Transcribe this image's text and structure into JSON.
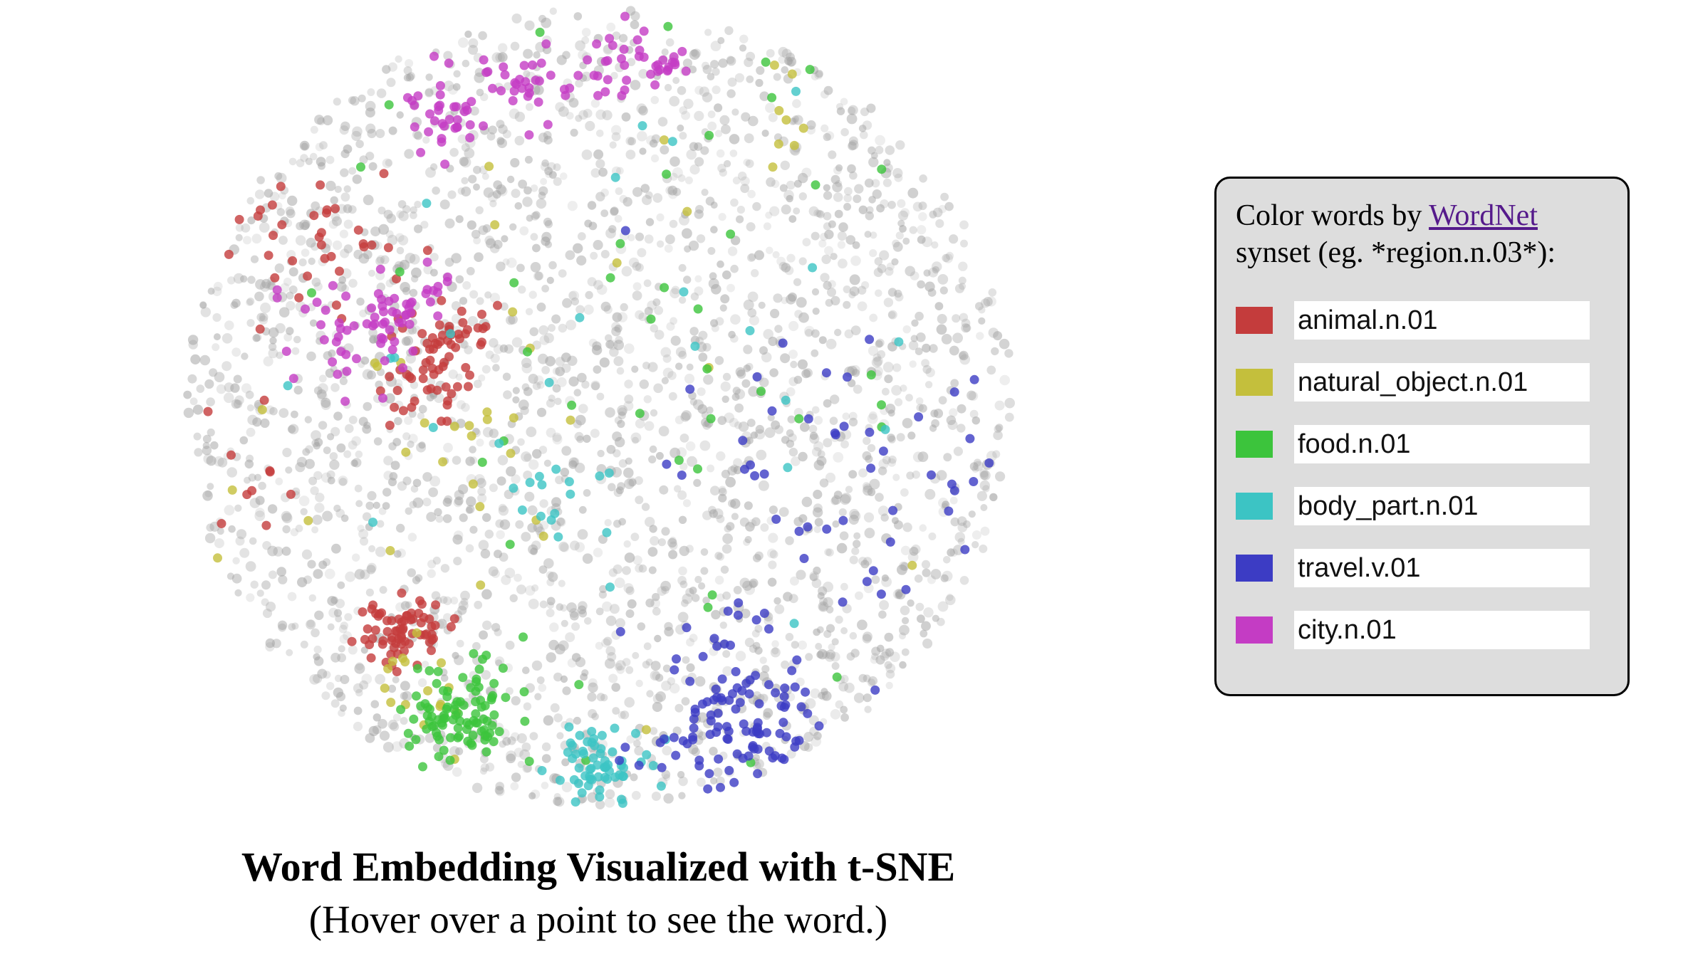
{
  "caption": {
    "title": "Word Embedding Visualized with t-SNE",
    "subtitle": "(Hover over a point to see the word.)"
  },
  "legend": {
    "intro_prefix": "Color words by ",
    "link_text": "WordNet",
    "intro_suffix": "synset (eg. *region.n.03*):",
    "items": [
      {
        "value": "animal.n.01",
        "color": "#c43c3c"
      },
      {
        "value": "natural_object.n.01",
        "color": "#c4bf3c"
      },
      {
        "value": "food.n.01",
        "color": "#3cc43c"
      },
      {
        "value": "body_part.n.01",
        "color": "#3cc4c4"
      },
      {
        "value": "travel.v.01",
        "color": "#3c3cc4"
      },
      {
        "value": "city.n.01",
        "color": "#c43cc4"
      }
    ]
  },
  "chart_data": {
    "type": "scatter",
    "title": "Word Embedding Visualized with t-SNE",
    "subtitle": "(Hover over a point to see the word.)",
    "xlabel": "",
    "ylabel": "",
    "axes": "none",
    "grid": false,
    "legend_position": "right",
    "background_color": "#a0a0a0",
    "series": [
      {
        "name": "animal.n.01",
        "color": "#c43c3c",
        "clusters": [
          {
            "cx": 0.26,
            "cy": 0.78,
            "spread": 0.025,
            "n": 70
          },
          {
            "cx": 0.29,
            "cy": 0.46,
            "spread": 0.03,
            "n": 45
          },
          {
            "cx": 0.33,
            "cy": 0.4,
            "spread": 0.02,
            "n": 25
          },
          {
            "cx": 0.15,
            "cy": 0.29,
            "spread": 0.06,
            "n": 35
          },
          {
            "cx": 0.08,
            "cy": 0.6,
            "spread": 0.04,
            "n": 10
          }
        ]
      },
      {
        "name": "natural_object.n.01",
        "color": "#c4bf3c",
        "clusters": [
          {
            "cx": 0.3,
            "cy": 0.86,
            "spread": 0.03,
            "n": 15
          },
          {
            "cx": 0.35,
            "cy": 0.5,
            "spread": 0.06,
            "n": 15
          },
          {
            "cx": 0.72,
            "cy": 0.12,
            "spread": 0.03,
            "n": 8
          },
          {
            "cx": 0.5,
            "cy": 0.5,
            "spread": 0.3,
            "n": 20
          }
        ]
      },
      {
        "name": "food.n.01",
        "color": "#3cc43c",
        "clusters": [
          {
            "cx": 0.33,
            "cy": 0.88,
            "spread": 0.035,
            "n": 95
          },
          {
            "cx": 0.5,
            "cy": 0.55,
            "spread": 0.3,
            "n": 45
          }
        ]
      },
      {
        "name": "body_part.n.01",
        "color": "#3cc4c4",
        "clusters": [
          {
            "cx": 0.5,
            "cy": 0.96,
            "spread": 0.025,
            "n": 60
          },
          {
            "cx": 0.45,
            "cy": 0.6,
            "spread": 0.03,
            "n": 15
          },
          {
            "cx": 0.5,
            "cy": 0.5,
            "spread": 0.3,
            "n": 25
          }
        ]
      },
      {
        "name": "travel.v.01",
        "color": "#3c3cc4",
        "clusters": [
          {
            "cx": 0.67,
            "cy": 0.9,
            "spread": 0.06,
            "n": 110
          },
          {
            "cx": 0.8,
            "cy": 0.6,
            "spread": 0.12,
            "n": 50
          }
        ]
      },
      {
        "name": "city.n.01",
        "color": "#c43cc4",
        "clusters": [
          {
            "cx": 0.22,
            "cy": 0.4,
            "spread": 0.04,
            "n": 55
          },
          {
            "cx": 0.31,
            "cy": 0.13,
            "spread": 0.025,
            "n": 35
          },
          {
            "cx": 0.41,
            "cy": 0.09,
            "spread": 0.025,
            "n": 30
          },
          {
            "cx": 0.52,
            "cy": 0.07,
            "spread": 0.025,
            "n": 25
          },
          {
            "cx": 0.58,
            "cy": 0.07,
            "spread": 0.015,
            "n": 15
          },
          {
            "cx": 0.27,
            "cy": 0.36,
            "spread": 0.02,
            "n": 15
          }
        ]
      }
    ]
  }
}
